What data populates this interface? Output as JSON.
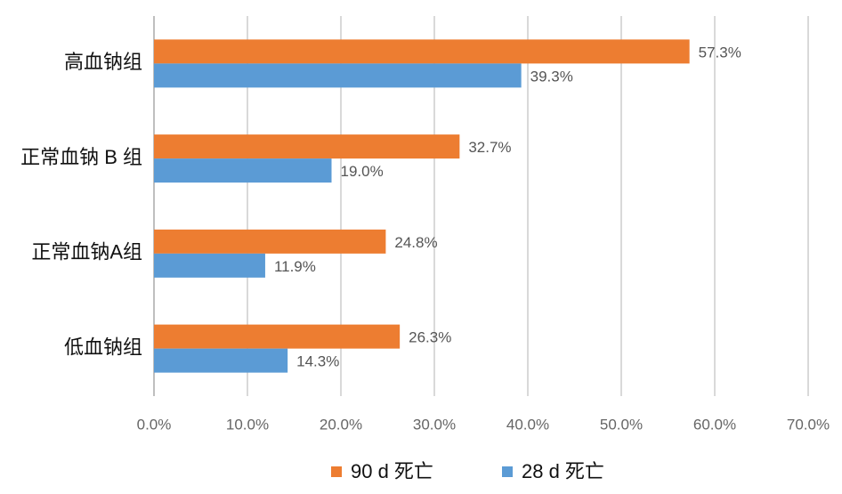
{
  "chart_data": {
    "type": "bar",
    "orientation": "horizontal",
    "categories": [
      "高血钠组",
      "正常血钠 B 组",
      "正常血钠A组",
      "低血钠组"
    ],
    "series": [
      {
        "name": "90 d 死亡",
        "color": "#ed7d31",
        "values": [
          57.3,
          32.7,
          24.8,
          26.3
        ],
        "value_labels": [
          "57.3%",
          "32.7%",
          "24.8%",
          "26.3%"
        ]
      },
      {
        "name": "28 d 死亡",
        "color": "#5b9bd5",
        "values": [
          39.3,
          19.0,
          11.9,
          14.3
        ],
        "value_labels": [
          "39.3%",
          "19.0%",
          "11.9%",
          "14.3%"
        ]
      }
    ],
    "xlim": [
      0,
      70
    ],
    "xticks": [
      {
        "value": 0,
        "label": "0.0%"
      },
      {
        "value": 10,
        "label": "10.0%"
      },
      {
        "value": 20,
        "label": "20.0%"
      },
      {
        "value": 30,
        "label": "30.0%"
      },
      {
        "value": 40,
        "label": "40.0%"
      },
      {
        "value": 50,
        "label": "50.0%"
      },
      {
        "value": 60,
        "label": "60.0%"
      },
      {
        "value": 70,
        "label": "70.0%"
      }
    ],
    "grid": true,
    "legend": "bottom"
  }
}
